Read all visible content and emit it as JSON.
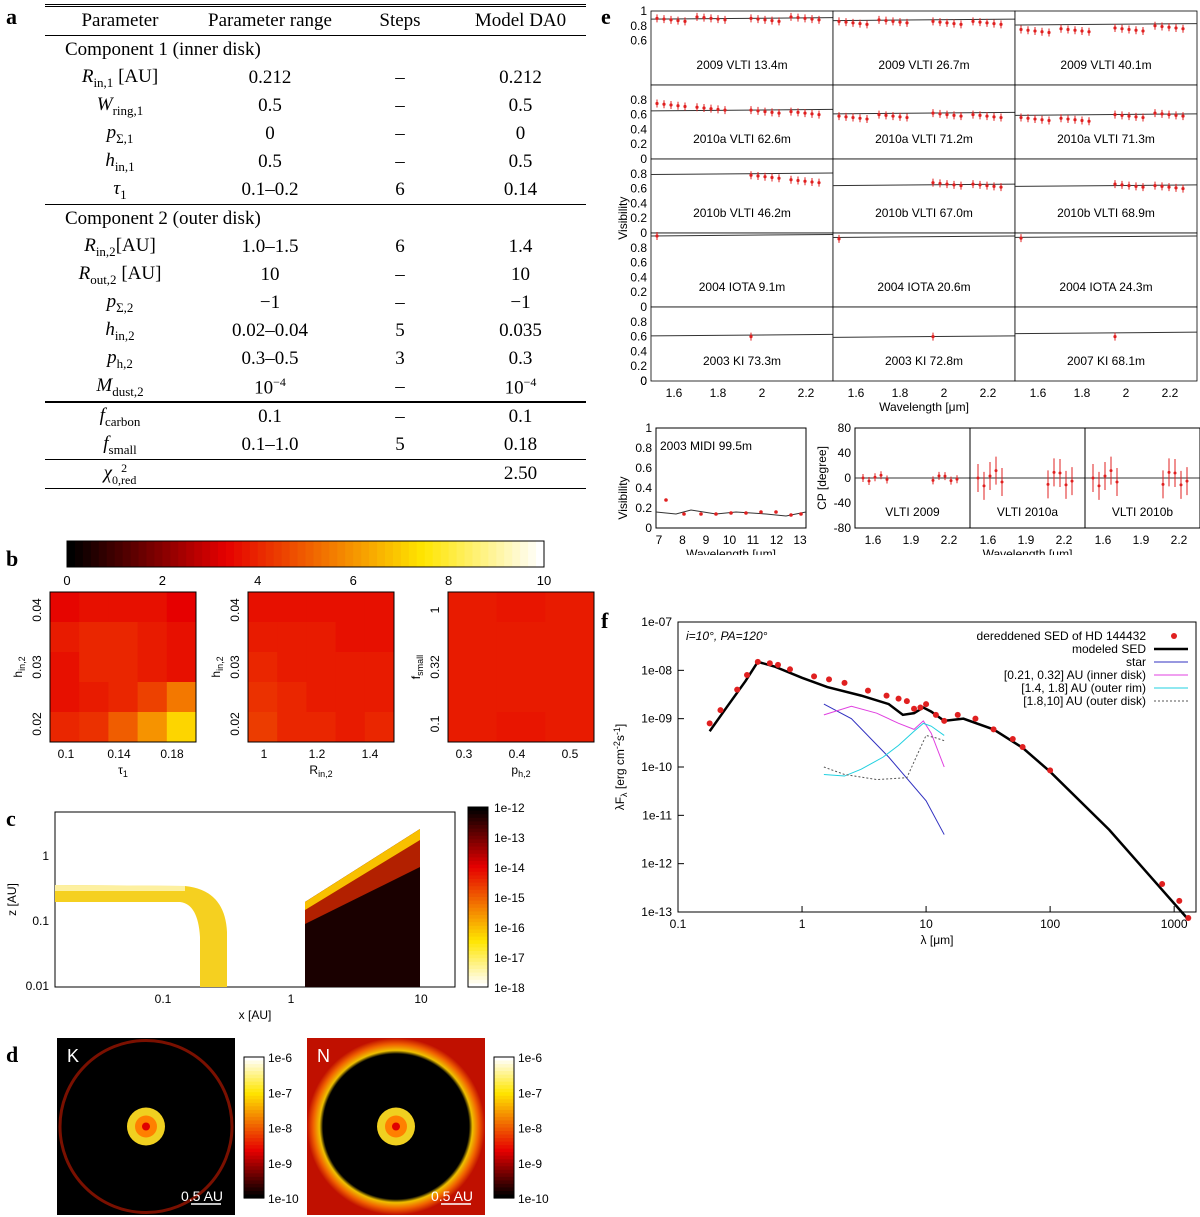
{
  "letters": {
    "a": "a",
    "b": "b",
    "c": "c",
    "d": "d",
    "e": "e",
    "f": "f"
  },
  "table": {
    "headers": [
      "Parameter",
      "Parameter range",
      "Steps",
      "Model DA0"
    ],
    "section1": "Component 1 (inner disk)",
    "rows1": [
      {
        "sym": "R",
        "sub": "in,1",
        "unit": " [AU]",
        "range": "0.212",
        "steps": "–",
        "model": "0.212"
      },
      {
        "sym": "W",
        "sub": "ring,1",
        "unit": "",
        "range": "0.5",
        "steps": "–",
        "model": "0.5"
      },
      {
        "sym": "p",
        "sub": "Σ,1",
        "unit": "",
        "range": "0",
        "steps": "–",
        "model": "0"
      },
      {
        "sym": "h",
        "sub": "in,1",
        "unit": "",
        "range": "0.5",
        "steps": "–",
        "model": "0.5"
      },
      {
        "sym": "τ",
        "sub": "1",
        "unit": "",
        "range": "0.1–0.2",
        "steps": "6",
        "model": "0.14"
      }
    ],
    "section2": "Component 2 (outer disk)",
    "rows2": [
      {
        "sym": "R",
        "sub": "in,2",
        "unit": "[AU]",
        "range": "1.0–1.5",
        "steps": "6",
        "model": "1.4"
      },
      {
        "sym": "R",
        "sub": "out,2",
        "unit": " [AU]",
        "range": "10",
        "steps": "–",
        "model": "10"
      },
      {
        "sym": "p",
        "sub": "Σ,2",
        "unit": "",
        "range": "−1",
        "steps": "–",
        "model": "−1"
      },
      {
        "sym": "h",
        "sub": "in,2",
        "unit": "",
        "range": "0.02–0.04",
        "steps": "5",
        "model": "0.035"
      },
      {
        "sym": "p",
        "sub": "h,2",
        "unit": "",
        "range": "0.3–0.5",
        "steps": "3",
        "model": "0.3"
      },
      {
        "sym": "M",
        "sub": "dust,2",
        "unit": "",
        "range": "10",
        "rangeExp": "−4",
        "steps": "–",
        "model": "10",
        "modelExp": "−4"
      }
    ],
    "rows3": [
      {
        "sym": "f",
        "sub": "carbon",
        "unit": "",
        "range": "0.1",
        "steps": "–",
        "model": "0.1"
      },
      {
        "sym": "f",
        "sub": "small",
        "unit": "",
        "range": "0.1–1.0",
        "steps": "5",
        "model": "0.18"
      }
    ],
    "chi": {
      "sym": "χ",
      "sup": "2",
      "sub": "0,red",
      "model": "2.50"
    }
  },
  "panel_b": {
    "colorbar_ticks": [
      "0",
      "2",
      "4",
      "6",
      "8",
      "10"
    ],
    "maps": [
      {
        "ylabel": "h",
        "ysub": "in,2",
        "xlabel": "τ",
        "xsub": "1",
        "yticks": [
          "0.02",
          "0.03",
          "0.04"
        ],
        "xticks": [
          "0.1",
          "0.14",
          "0.18"
        ]
      },
      {
        "ylabel": "h",
        "ysub": "in,2",
        "xlabel": "R",
        "xsub": "in,2",
        "yticks": [
          "0.02",
          "0.03",
          "0.04"
        ],
        "xticks": [
          "1",
          "1.2",
          "1.4"
        ]
      },
      {
        "ylabel": "f",
        "ysub": "small",
        "xlabel": "p",
        "xsub": "h,2",
        "yticks": [
          "0.1",
          "0.32",
          "1"
        ],
        "xticks": [
          "0.3",
          "0.4",
          "0.5"
        ]
      }
    ]
  },
  "panel_c": {
    "xlabel": "x [AU]",
    "ylabel": "z [AU]",
    "xticks": [
      "0.1",
      "1",
      "10"
    ],
    "yticks": [
      "0.01",
      "0.1",
      "1"
    ],
    "colorbar": [
      "1e-12",
      "1e-13",
      "1e-14",
      "1e-15",
      "1e-16",
      "1e-17",
      "1e-18"
    ]
  },
  "panel_d": {
    "images": [
      {
        "label": "K",
        "scale": "0.5 AU"
      },
      {
        "label": "N",
        "scale": "0.5 AU"
      }
    ],
    "colorbar": [
      "1e-6",
      "1e-7",
      "1e-8",
      "1e-9",
      "1e-10"
    ]
  },
  "panel_e": {
    "ylabel": "Visibility",
    "xlabel": "Wavelength [μm]",
    "yticks": [
      "0",
      "0.2",
      "0.4",
      "0.6",
      "0.8",
      "1"
    ],
    "xticks": [
      "1.6",
      "1.8",
      "2",
      "2.2"
    ],
    "grid_labels": [
      [
        "2009 VLTI 13.4m",
        "2009 VLTI 26.7m",
        "2009 VLTI 40.1m"
      ],
      [
        "2010a VLTI 62.6m",
        "2010a VLTI 71.2m",
        "2010a VLTI 71.3m"
      ],
      [
        "2010b VLTI 46.2m",
        "2010b VLTI 67.0m",
        "2010b VLTI 68.9m"
      ],
      [
        "2004 IOTA 9.1m",
        "2004 IOTA 20.6m",
        "2004 IOTA 24.3m"
      ],
      [
        "2003 KI 73.3m",
        "2003 KI 72.8m",
        "2007 KI 68.1m"
      ]
    ],
    "midi": {
      "label": "2003 MIDI 99.5m",
      "ylabel": "Visibility",
      "xlabel": "Wavelength [μm]",
      "yticks": [
        "0",
        "0.2",
        "0.4",
        "0.6",
        "0.8",
        "1"
      ],
      "xticks": [
        "7",
        "8",
        "9",
        "10",
        "11",
        "12",
        "13"
      ]
    },
    "cp": {
      "ylabel": "CP [degree]",
      "xlabel": "Wavelength [μm]",
      "yticks": [
        "-80",
        "-60",
        "-40",
        "-20",
        "0",
        "20",
        "40",
        "60",
        "80"
      ],
      "xticks": [
        "1.6",
        "1.9",
        "2.2"
      ],
      "labels": [
        "VLTI 2009",
        "VLTI 2010a",
        "VLTI 2010b"
      ]
    }
  },
  "panel_f": {
    "annotation": "i=10°, PA=120°",
    "xlabel": "λ [μm]",
    "ylabel": "λF",
    "ylabel_sub": "λ",
    "ylabel_unit": " [erg cm",
    "ylabel_e1": "-2",
    "ylabel_mid": "s",
    "ylabel_e2": "-1",
    "ylabel_end": "]",
    "xticks": [
      "0.1",
      "1",
      "10",
      "100",
      "1000"
    ],
    "yticks": [
      "1e-13",
      "1e-12",
      "1e-11",
      "1e-10",
      "1e-09",
      "1e-08",
      "1e-07"
    ],
    "legend": [
      {
        "label": "dereddened SED of HD 144432",
        "color": "#e02020"
      },
      {
        "label": "modeled SED",
        "color": "#000000"
      },
      {
        "label": "star",
        "color": "#3030c0"
      },
      {
        "label": "[0.21, 0.32] AU (inner disk)",
        "color": "#e040e0"
      },
      {
        "label": "[1.4, 1.8] AU (outer rim)",
        "color": "#20d0e0"
      },
      {
        "label": "[1.8,10] AU (outer disk)",
        "color": "#555555"
      }
    ]
  },
  "chart_data": {
    "type": "scatter",
    "title": "",
    "xlabel": "λ [μm]",
    "ylabel": "λFλ [erg cm-2 s-1]",
    "xscale": "log",
    "yscale": "log",
    "xlim": [
      0.1,
      1500
    ],
    "ylim": [
      1e-13,
      1e-07
    ],
    "series": [
      {
        "name": "dereddened SED of HD 144432",
        "points": [
          [
            0.18,
            8e-10
          ],
          [
            0.22,
            1.5e-09
          ],
          [
            0.3,
            4e-09
          ],
          [
            0.36,
            8e-09
          ],
          [
            0.44,
            1.5e-08
          ],
          [
            0.55,
            1.4e-08
          ],
          [
            0.64,
            1.3e-08
          ],
          [
            0.8,
            1.05e-08
          ],
          [
            1.25,
            7.5e-09
          ],
          [
            1.65,
            6.5e-09
          ],
          [
            2.2,
            5.5e-09
          ],
          [
            3.4,
            3.8e-09
          ],
          [
            4.8,
            3e-09
          ],
          [
            6,
            2.6e-09
          ],
          [
            7,
            2.3e-09
          ],
          [
            8,
            1.6e-09
          ],
          [
            9,
            1.7e-09
          ],
          [
            10,
            2e-09
          ],
          [
            12,
            1.2e-09
          ],
          [
            14,
            9e-10
          ],
          [
            18,
            1.2e-09
          ],
          [
            25,
            1e-09
          ],
          [
            35,
            6e-10
          ],
          [
            50,
            3.8e-10
          ],
          [
            60,
            2.6e-10
          ],
          [
            100,
            8.5e-11
          ],
          [
            800,
            3.8e-13
          ],
          [
            1100,
            1.7e-13
          ],
          [
            1300,
            7.5e-14
          ]
        ]
      },
      {
        "name": "modeled SED",
        "points": [
          [
            0.18,
            5.5e-10
          ],
          [
            0.25,
            1.8e-09
          ],
          [
            0.35,
            6e-09
          ],
          [
            0.44,
            1.5e-08
          ],
          [
            0.6,
            1.2e-08
          ],
          [
            1,
            7e-09
          ],
          [
            1.6,
            4.5e-09
          ],
          [
            3,
            3e-09
          ],
          [
            5,
            2e-09
          ],
          [
            6.5,
            1.2e-09
          ],
          [
            8,
            1.3e-09
          ],
          [
            9.5,
            1.7e-09
          ],
          [
            11,
            1.4e-09
          ],
          [
            14,
            9e-10
          ],
          [
            20,
            1e-09
          ],
          [
            35,
            6e-10
          ],
          [
            60,
            2.5e-10
          ],
          [
            100,
            8e-11
          ],
          [
            300,
            5e-12
          ],
          [
            1000,
            1.5e-13
          ],
          [
            1300,
            7e-14
          ]
        ]
      }
    ]
  }
}
